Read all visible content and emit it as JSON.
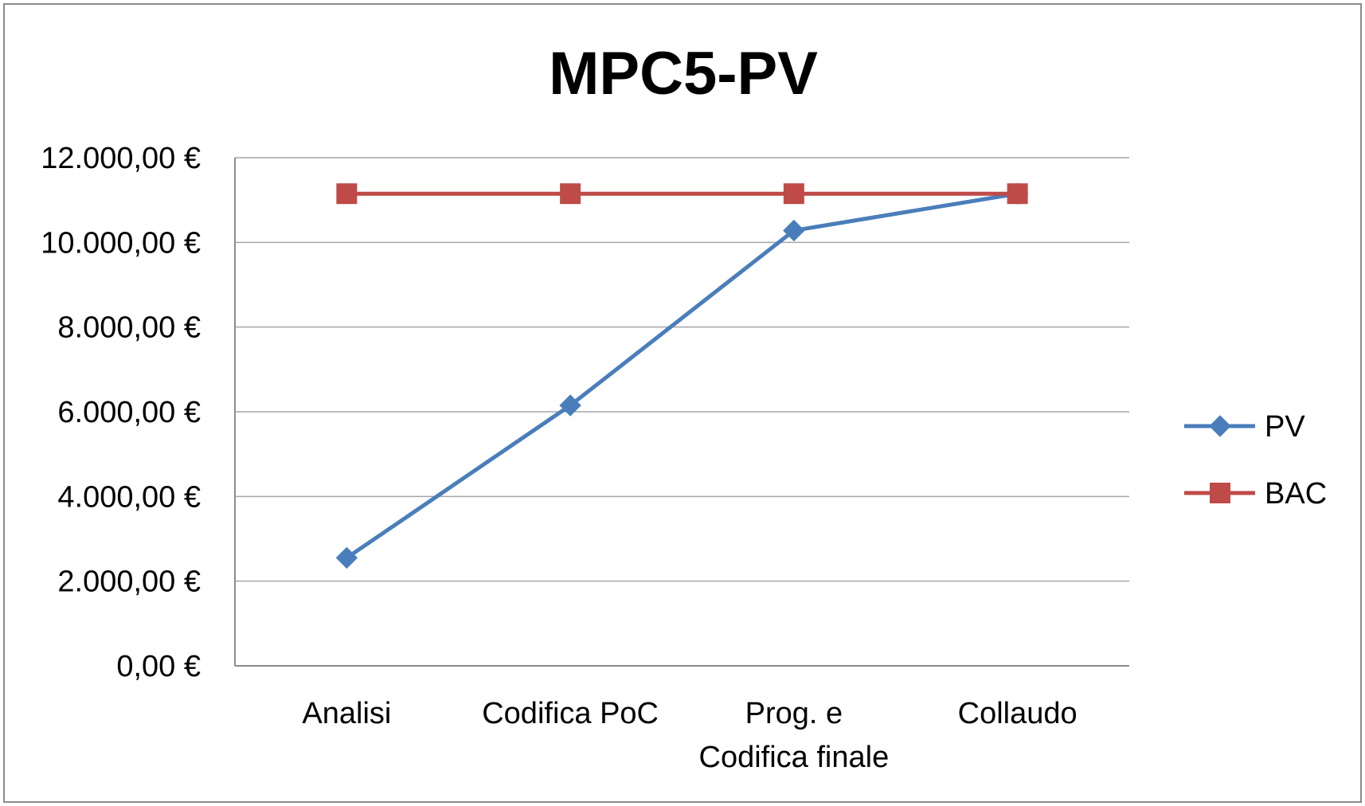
{
  "chart_data": {
    "type": "line",
    "title": "MPC5-PV",
    "categories": [
      "Analisi",
      "Codifica PoC",
      "Prog. e\nCodifica finale",
      "Collaudo"
    ],
    "series": [
      {
        "name": "PV",
        "values": [
          2550,
          6150,
          10280,
          11150
        ],
        "color": "#4a7ebb",
        "marker": "diamond"
      },
      {
        "name": "BAC",
        "values": [
          11150,
          11150,
          11150,
          11150
        ],
        "color": "#be4b48",
        "marker": "square"
      }
    ],
    "ylim": [
      0,
      12000
    ],
    "yticks": [
      0,
      2000,
      4000,
      6000,
      8000,
      10000,
      12000
    ],
    "ytick_labels": [
      "0,00 €",
      "2.000,00 €",
      "4.000,00 €",
      "6.000,00 €",
      "8.000,00 €",
      "10.000,00 €",
      "12.000,00 €"
    ],
    "grid": true,
    "legend_position": "right"
  }
}
